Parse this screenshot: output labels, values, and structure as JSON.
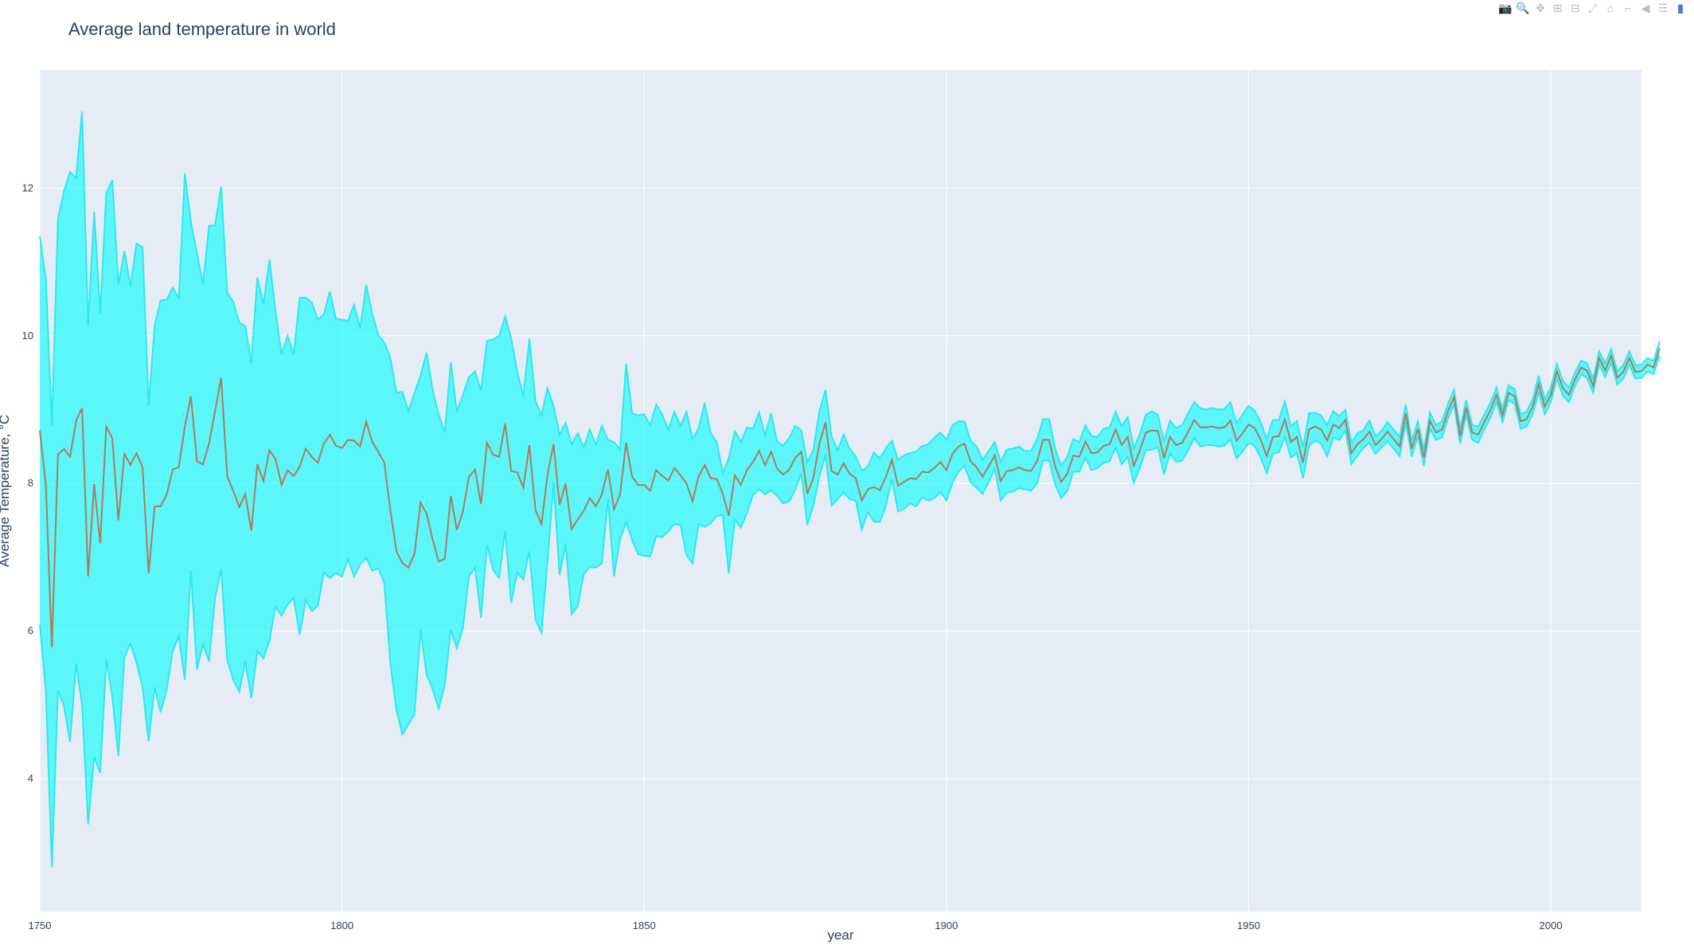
{
  "modebar": {
    "buttons": [
      {
        "name": "camera-icon",
        "glyph": "📷"
      },
      {
        "name": "zoom-icon",
        "glyph": "🔍"
      },
      {
        "name": "pan-icon",
        "glyph": "✥"
      },
      {
        "name": "zoom-in-icon",
        "glyph": "⊞"
      },
      {
        "name": "zoom-out-icon",
        "glyph": "⊟"
      },
      {
        "name": "autoscale-icon",
        "glyph": "⤢"
      },
      {
        "name": "home-icon",
        "glyph": "⌂"
      },
      {
        "name": "spike-lines-icon",
        "glyph": "⌐"
      },
      {
        "name": "hover-closest-icon",
        "glyph": "◀"
      },
      {
        "name": "hover-compare-icon",
        "glyph": "☰"
      },
      {
        "name": "plotly-logo-icon",
        "glyph": "▮"
      }
    ]
  },
  "chart_data": {
    "type": "area",
    "title": "Average land temperature in world",
    "xlabel": "year",
    "ylabel": "Average Temperature, °C",
    "xlim": [
      1750,
      2015
    ],
    "ylim": [
      2.2,
      13.6
    ],
    "xticks": [
      1750,
      1800,
      1850,
      1900,
      1950,
      2000
    ],
    "yticks": [
      4,
      6,
      8,
      10,
      12
    ],
    "grid": true,
    "colors": {
      "band_fill": "#00ffff99",
      "band_line": "#2ee8ee",
      "mean_line": "#b07a5a",
      "plot_bg": "#e5ecf6",
      "grid": "#ffffff",
      "text": "#2a3f5f"
    },
    "x_step": 1,
    "series": [
      {
        "role": "mean",
        "values": [
          8.72,
          7.98,
          5.78,
          8.39,
          8.47,
          8.36,
          8.85,
          9.02,
          6.74,
          7.99,
          7.19,
          8.77,
          8.61,
          7.5,
          8.4,
          8.25,
          8.41,
          8.22,
          6.78,
          7.69,
          7.69,
          7.85,
          8.19,
          8.22,
          8.77,
          9.18,
          8.3,
          8.26,
          8.54,
          8.98,
          9.43,
          8.1,
          7.9,
          7.68,
          7.86,
          7.36,
          8.26,
          8.03,
          8.45,
          8.33,
          7.98,
          8.18,
          8.1,
          8.23,
          8.47,
          8.36,
          8.28,
          8.54,
          8.66,
          8.51,
          8.48,
          8.59,
          8.58,
          8.5,
          8.84,
          8.56,
          8.43,
          8.28,
          7.63,
          7.08,
          6.92,
          6.86,
          7.05,
          7.74,
          7.59,
          7.24,
          6.94,
          6.98,
          7.83,
          7.37,
          7.62,
          8.09,
          8.19,
          7.72,
          8.55,
          8.39,
          8.36,
          8.81,
          8.17,
          8.15,
          7.94,
          8.52,
          7.64,
          7.45,
          8.12,
          8.53,
          7.71,
          8.0,
          7.38,
          7.51,
          7.63,
          7.8,
          7.69,
          7.85,
          8.19,
          7.65,
          7.85,
          8.55,
          8.09,
          7.98,
          7.98,
          7.9,
          8.18,
          8.1,
          8.04,
          8.21,
          8.11,
          8.0,
          7.76,
          8.1,
          8.25,
          8.07,
          8.06,
          7.86,
          7.56,
          8.11,
          7.98,
          8.18,
          8.29,
          8.44,
          8.25,
          8.43,
          8.2,
          8.12,
          8.19,
          8.35,
          8.43,
          7.86,
          8.08,
          8.54,
          8.83,
          8.17,
          8.12,
          8.27,
          8.13,
          8.07,
          7.77,
          7.92,
          7.95,
          7.91,
          8.09,
          8.32,
          7.97,
          8.02,
          8.07,
          8.06,
          8.16,
          8.15,
          8.21,
          8.29,
          8.18,
          8.4,
          8.5,
          8.54,
          8.3,
          8.22,
          8.09,
          8.23,
          8.38,
          8.03,
          8.17,
          8.18,
          8.22,
          8.18,
          8.17,
          8.3,
          8.59,
          8.59,
          8.23,
          8.02,
          8.13,
          8.38,
          8.36,
          8.57,
          8.41,
          8.42,
          8.51,
          8.53,
          8.73,
          8.52,
          8.63,
          8.24,
          8.44,
          8.69,
          8.72,
          8.71,
          8.34,
          8.63,
          8.52,
          8.55,
          8.7,
          8.86,
          8.76,
          8.76,
          8.77,
          8.75,
          8.76,
          8.85,
          8.58,
          8.68,
          8.8,
          8.75,
          8.59,
          8.37,
          8.63,
          8.64,
          8.87,
          8.56,
          8.63,
          8.28,
          8.73,
          8.77,
          8.73,
          8.58,
          8.8,
          8.75,
          8.86,
          8.41,
          8.53,
          8.6,
          8.7,
          8.52,
          8.6,
          8.7,
          8.6,
          8.5,
          8.95,
          8.47,
          8.74,
          8.35,
          8.85,
          8.69,
          8.73,
          8.98,
          9.17,
          8.64,
          9.03,
          8.69,
          8.66,
          8.83,
          8.99,
          9.2,
          8.92,
          9.23,
          9.18,
          8.84,
          8.87,
          9.04,
          9.35,
          9.04,
          9.2,
          9.52,
          9.29,
          9.2,
          9.41,
          9.57,
          9.53,
          9.32,
          9.7,
          9.53,
          9.73,
          9.43,
          9.51,
          9.7,
          9.51,
          9.52,
          9.61,
          9.57,
          9.83
        ]
      },
      {
        "role": "upper",
        "values": [
          11.35,
          10.77,
          8.78,
          11.58,
          11.96,
          12.22,
          12.14,
          13.04,
          10.14,
          11.68,
          10.3,
          11.93,
          12.11,
          10.69,
          11.15,
          10.67,
          11.25,
          11.2,
          9.05,
          10.14,
          10.48,
          10.49,
          10.65,
          10.51,
          12.2,
          11.54,
          11.12,
          10.7,
          11.49,
          11.5,
          12.02,
          10.59,
          10.46,
          10.18,
          10.13,
          9.63,
          10.79,
          10.43,
          11.03,
          10.33,
          9.75,
          10.0,
          9.75,
          10.51,
          10.52,
          10.45,
          10.22,
          10.29,
          10.6,
          10.23,
          10.22,
          10.2,
          10.42,
          10.1,
          10.69,
          10.3,
          10.01,
          9.91,
          9.7,
          9.23,
          9.24,
          8.98,
          9.23,
          9.46,
          9.77,
          9.27,
          8.93,
          8.69,
          9.64,
          8.97,
          9.2,
          9.44,
          9.52,
          9.26,
          9.93,
          9.95,
          10.0,
          10.26,
          9.96,
          9.51,
          9.18,
          9.96,
          9.12,
          8.92,
          9.29,
          9.05,
          8.66,
          8.82,
          8.53,
          8.68,
          8.49,
          8.73,
          8.52,
          8.78,
          8.59,
          8.56,
          8.46,
          9.62,
          8.95,
          8.92,
          8.94,
          8.79,
          9.07,
          8.93,
          8.73,
          8.97,
          8.78,
          8.97,
          8.6,
          8.75,
          9.09,
          8.68,
          8.56,
          8.15,
          8.34,
          8.71,
          8.56,
          8.76,
          8.74,
          8.96,
          8.65,
          8.95,
          8.57,
          8.51,
          8.62,
          8.78,
          8.72,
          8.28,
          8.46,
          8.98,
          9.27,
          8.64,
          8.45,
          8.66,
          8.47,
          8.37,
          8.17,
          8.23,
          8.42,
          8.34,
          8.48,
          8.58,
          8.32,
          8.38,
          8.41,
          8.43,
          8.51,
          8.53,
          8.62,
          8.69,
          8.59,
          8.79,
          8.84,
          8.84,
          8.58,
          8.5,
          8.32,
          8.44,
          8.56,
          8.29,
          8.46,
          8.47,
          8.5,
          8.44,
          8.44,
          8.6,
          8.87,
          8.87,
          8.47,
          8.24,
          8.36,
          8.6,
          8.56,
          8.79,
          8.64,
          8.63,
          8.74,
          8.76,
          8.97,
          8.78,
          8.9,
          8.47,
          8.67,
          8.93,
          8.98,
          8.93,
          8.56,
          8.85,
          8.75,
          8.79,
          8.95,
          9.1,
          9.02,
          9.0,
          9.02,
          9.0,
          9.01,
          9.1,
          8.82,
          8.93,
          9.05,
          8.99,
          8.83,
          8.6,
          8.86,
          8.86,
          9.11,
          8.77,
          8.85,
          8.49,
          8.95,
          8.96,
          8.92,
          8.79,
          8.98,
          8.91,
          9.0,
          8.56,
          8.68,
          8.72,
          8.85,
          8.64,
          8.71,
          8.83,
          8.73,
          8.63,
          9.07,
          8.58,
          8.84,
          8.46,
          8.96,
          8.79,
          8.84,
          9.08,
          9.27,
          8.74,
          9.13,
          8.79,
          8.77,
          8.93,
          9.09,
          9.3,
          9.01,
          9.33,
          9.28,
          8.94,
          8.97,
          9.14,
          9.46,
          9.14,
          9.3,
          9.62,
          9.39,
          9.3,
          9.5,
          9.66,
          9.63,
          9.41,
          9.79,
          9.62,
          9.82,
          9.52,
          9.6,
          9.79,
          9.6,
          9.61,
          9.7,
          9.66,
          9.93
        ]
      },
      {
        "role": "lower",
        "values": [
          6.09,
          5.19,
          2.8,
          5.2,
          4.98,
          4.5,
          5.56,
          5.0,
          3.38,
          4.3,
          4.08,
          5.61,
          5.11,
          4.31,
          5.65,
          5.83,
          5.57,
          5.24,
          4.51,
          5.24,
          4.9,
          5.21,
          5.73,
          5.93,
          5.34,
          6.82,
          5.48,
          5.82,
          5.59,
          6.46,
          6.84,
          5.61,
          5.34,
          5.18,
          5.59,
          5.09,
          5.73,
          5.63,
          5.87,
          6.33,
          6.21,
          6.36,
          6.45,
          5.95,
          6.42,
          6.27,
          6.34,
          6.79,
          6.72,
          6.79,
          6.74,
          6.98,
          6.74,
          6.9,
          6.99,
          6.82,
          6.85,
          6.65,
          5.56,
          4.93,
          4.6,
          4.74,
          4.87,
          6.02,
          5.41,
          5.21,
          4.95,
          5.27,
          6.02,
          5.77,
          6.04,
          6.74,
          6.86,
          6.18,
          7.17,
          6.83,
          6.72,
          7.36,
          6.38,
          6.79,
          6.7,
          7.08,
          6.16,
          5.98,
          6.95,
          8.01,
          6.76,
          7.18,
          6.23,
          6.34,
          6.77,
          6.87,
          6.86,
          6.92,
          7.79,
          6.74,
          7.24,
          7.48,
          7.23,
          7.04,
          7.02,
          7.01,
          7.29,
          7.27,
          7.35,
          7.45,
          7.44,
          7.03,
          6.92,
          7.45,
          7.41,
          7.46,
          7.56,
          7.57,
          6.78,
          7.51,
          7.4,
          7.6,
          7.84,
          7.92,
          7.85,
          7.91,
          7.83,
          7.73,
          7.76,
          7.92,
          8.14,
          7.44,
          7.7,
          8.1,
          8.39,
          7.7,
          7.79,
          7.88,
          7.79,
          7.77,
          7.37,
          7.61,
          7.48,
          7.48,
          7.7,
          8.06,
          7.62,
          7.66,
          7.73,
          7.69,
          7.81,
          7.77,
          7.8,
          7.89,
          7.77,
          8.01,
          8.16,
          8.24,
          8.02,
          7.94,
          7.86,
          8.02,
          8.2,
          7.77,
          7.88,
          7.89,
          7.94,
          7.92,
          7.9,
          8.0,
          8.31,
          8.31,
          7.99,
          7.8,
          7.9,
          8.16,
          8.16,
          8.35,
          8.18,
          8.21,
          8.28,
          8.3,
          8.49,
          8.26,
          8.36,
          8.01,
          8.21,
          8.45,
          8.46,
          8.49,
          8.12,
          8.41,
          8.29,
          8.31,
          8.45,
          8.62,
          8.5,
          8.52,
          8.52,
          8.5,
          8.51,
          8.6,
          8.34,
          8.43,
          8.55,
          8.51,
          8.35,
          8.14,
          8.4,
          8.42,
          8.63,
          8.35,
          8.41,
          8.07,
          8.51,
          8.58,
          8.54,
          8.37,
          8.62,
          8.59,
          8.72,
          8.26,
          8.38,
          8.48,
          8.55,
          8.4,
          8.49,
          8.57,
          8.47,
          8.37,
          8.83,
          8.36,
          8.64,
          8.24,
          8.74,
          8.59,
          8.62,
          8.88,
          9.07,
          8.54,
          8.93,
          8.59,
          8.55,
          8.73,
          8.89,
          9.1,
          8.83,
          9.13,
          9.08,
          8.74,
          8.77,
          8.94,
          9.24,
          8.94,
          9.1,
          9.42,
          9.19,
          9.1,
          9.32,
          9.48,
          9.43,
          9.23,
          9.61,
          9.44,
          9.64,
          9.34,
          9.42,
          9.61,
          9.42,
          9.43,
          9.52,
          9.48,
          9.73
        ]
      }
    ]
  }
}
